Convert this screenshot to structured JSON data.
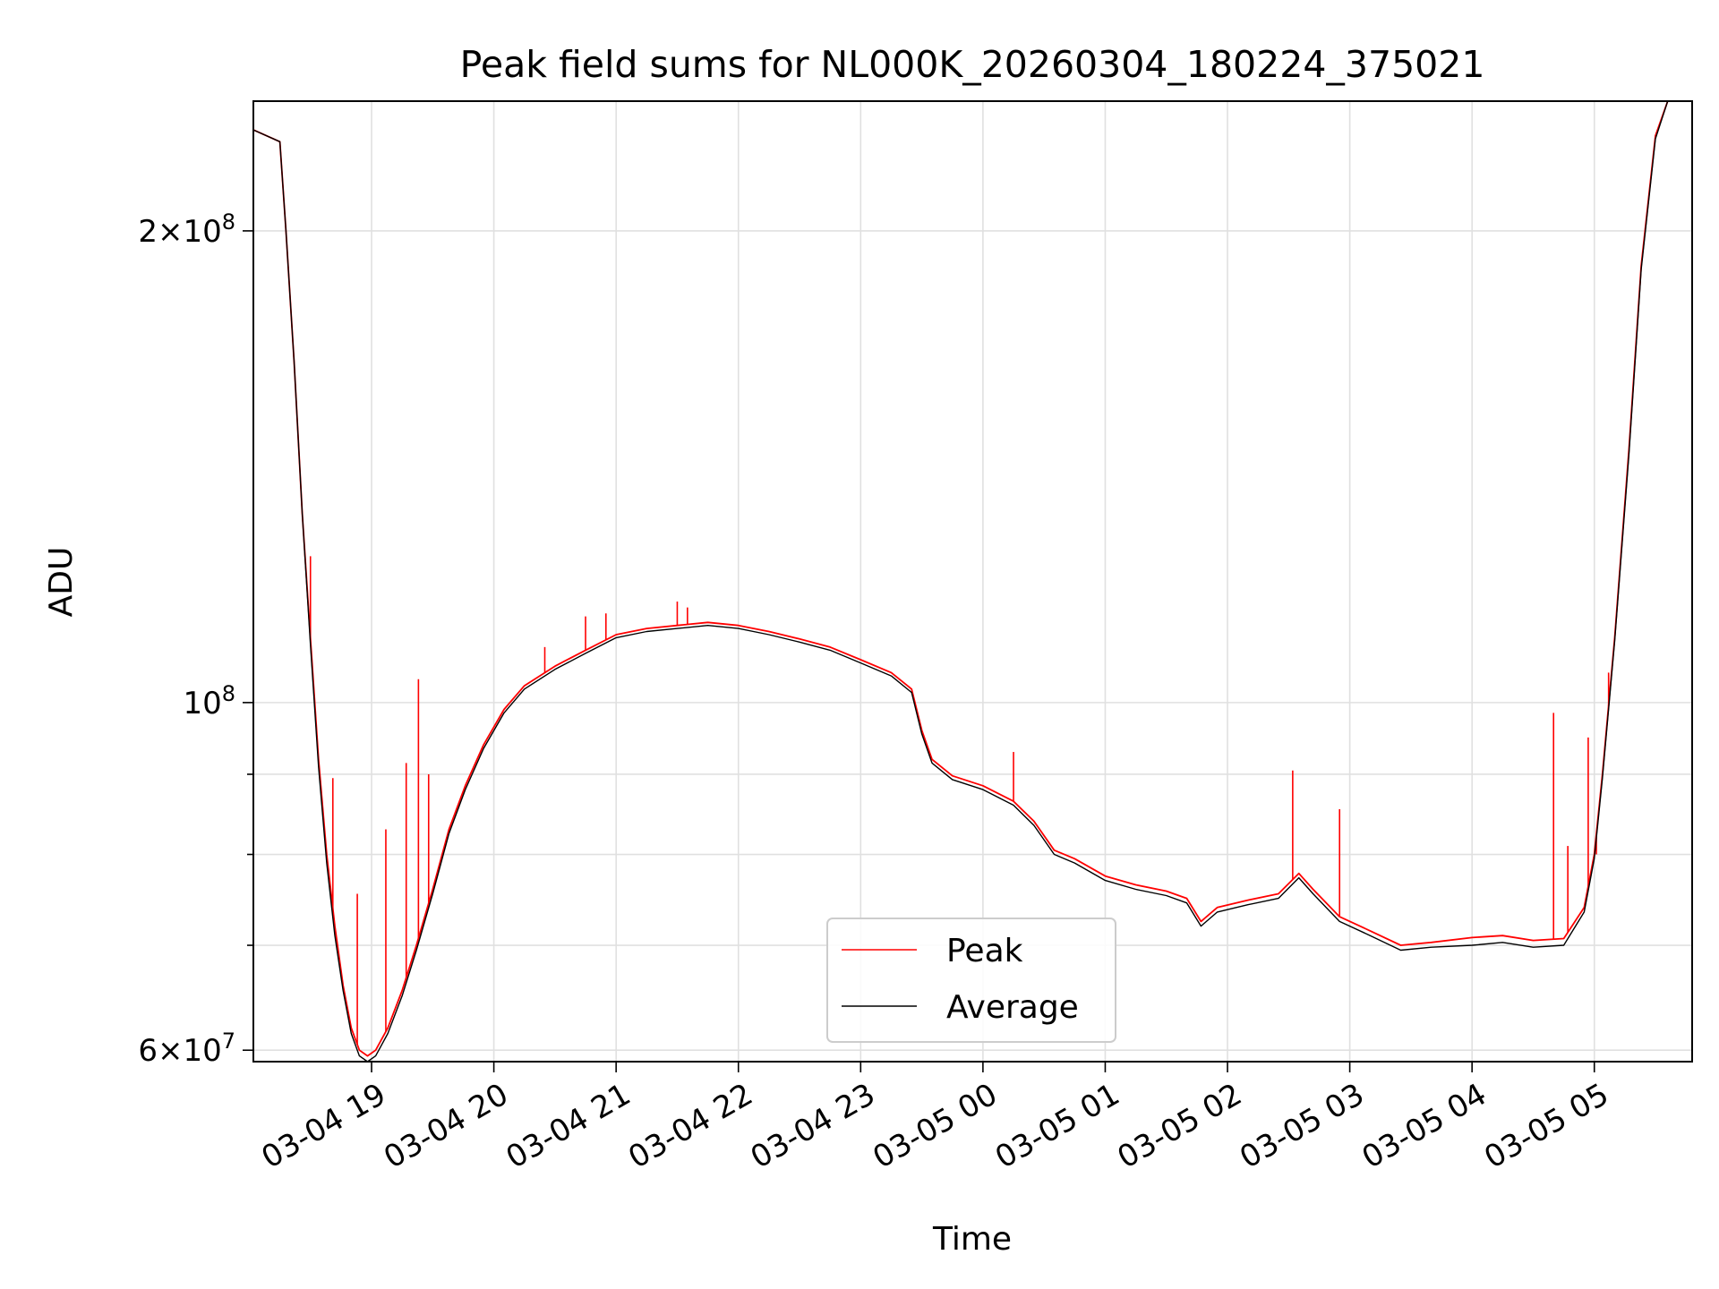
{
  "chart_data": {
    "type": "line",
    "title": "Peak field sums for NL000K_20260304_180224_375021",
    "xlabel": "Time",
    "ylabel": "ADU",
    "yscale": "log",
    "xlim": [
      "2026-03-04T18:02",
      "2026-03-05T05:48"
    ],
    "ylim": [
      59000000,
      242000000
    ],
    "grid": true,
    "legend_location": "lower center",
    "x_ticks": [
      "03-04 19",
      "03-04 20",
      "03-04 21",
      "03-04 22",
      "03-04 23",
      "03-05 00",
      "03-05 01",
      "03-05 02",
      "03-05 03",
      "03-05 04",
      "03-05 05"
    ],
    "y_ticks": [
      {
        "value": 60000000,
        "base": "6",
        "mult": "×10",
        "exp": "7"
      },
      {
        "value": 100000000,
        "base": "",
        "mult": "10",
        "exp": "8"
      },
      {
        "value": 200000000,
        "base": "2",
        "mult": "×10",
        "exp": "8"
      }
    ],
    "y_minor_ticks": [
      70000000,
      80000000,
      90000000
    ],
    "series": [
      {
        "name": "Peak",
        "color": "#ff0000",
        "points": [
          [
            "2026-03-04T18:02",
            232000000
          ],
          [
            "2026-03-04T18:15",
            228000000
          ],
          [
            "2026-03-04T18:18",
            200000000
          ],
          [
            "2026-03-04T18:22",
            165000000
          ],
          [
            "2026-03-04T18:26",
            132000000
          ],
          [
            "2026-03-04T18:30",
            110000000
          ],
          [
            "2026-03-04T18:34",
            92000000
          ],
          [
            "2026-03-04T18:38",
            80000000
          ],
          [
            "2026-03-04T18:42",
            72000000
          ],
          [
            "2026-03-04T18:46",
            66000000
          ],
          [
            "2026-03-04T18:50",
            62000000
          ],
          [
            "2026-03-04T18:54",
            60000000
          ],
          [
            "2026-03-04T18:58",
            59500000
          ],
          [
            "2026-03-04T19:02",
            60000000
          ],
          [
            "2026-03-04T19:08",
            62000000
          ],
          [
            "2026-03-04T19:15",
            65500000
          ],
          [
            "2026-03-04T19:22",
            70000000
          ],
          [
            "2026-03-04T19:30",
            76000000
          ],
          [
            "2026-03-04T19:38",
            83000000
          ],
          [
            "2026-03-04T19:46",
            88500000
          ],
          [
            "2026-03-04T19:55",
            94000000
          ],
          [
            "2026-03-04T20:05",
            99000000
          ],
          [
            "2026-03-04T20:15",
            102500000
          ],
          [
            "2026-03-04T20:30",
            105500000
          ],
          [
            "2026-03-04T20:45",
            108000000
          ],
          [
            "2026-03-04T21:00",
            110500000
          ],
          [
            "2026-03-04T21:15",
            111500000
          ],
          [
            "2026-03-04T21:30",
            112000000
          ],
          [
            "2026-03-04T21:45",
            112500000
          ],
          [
            "2026-03-04T22:00",
            112000000
          ],
          [
            "2026-03-04T22:15",
            111000000
          ],
          [
            "2026-03-04T22:30",
            109800000
          ],
          [
            "2026-03-04T22:45",
            108500000
          ],
          [
            "2026-03-04T23:00",
            106500000
          ],
          [
            "2026-03-04T23:15",
            104500000
          ],
          [
            "2026-03-04T23:25",
            102000000
          ],
          [
            "2026-03-04T23:30",
            96000000
          ],
          [
            "2026-03-04T23:35",
            92000000
          ],
          [
            "2026-03-04T23:45",
            89800000
          ],
          [
            "2026-03-05T00:00",
            88500000
          ],
          [
            "2026-03-05T00:15",
            86500000
          ],
          [
            "2026-03-05T00:25",
            84000000
          ],
          [
            "2026-03-05T00:35",
            80500000
          ],
          [
            "2026-03-05T00:45",
            79500000
          ],
          [
            "2026-03-05T01:00",
            77500000
          ],
          [
            "2026-03-05T01:15",
            76500000
          ],
          [
            "2026-03-05T01:30",
            75800000
          ],
          [
            "2026-03-05T01:40",
            75000000
          ],
          [
            "2026-03-05T01:47",
            72500000
          ],
          [
            "2026-03-05T01:55",
            74000000
          ],
          [
            "2026-03-05T02:10",
            74800000
          ],
          [
            "2026-03-05T02:25",
            75500000
          ],
          [
            "2026-03-05T02:35",
            77800000
          ],
          [
            "2026-03-05T02:42",
            76000000
          ],
          [
            "2026-03-05T02:55",
            73000000
          ],
          [
            "2026-03-05T03:10",
            71500000
          ],
          [
            "2026-03-05T03:25",
            70000000
          ],
          [
            "2026-03-05T03:40",
            70300000
          ],
          [
            "2026-03-05T04:00",
            70800000
          ],
          [
            "2026-03-05T04:15",
            71000000
          ],
          [
            "2026-03-05T04:30",
            70500000
          ],
          [
            "2026-03-05T04:45",
            70700000
          ],
          [
            "2026-03-05T04:55",
            74000000
          ],
          [
            "2026-03-05T05:00",
            80000000
          ],
          [
            "2026-03-05T05:04",
            90000000
          ],
          [
            "2026-03-05T05:10",
            110000000
          ],
          [
            "2026-03-05T05:17",
            145000000
          ],
          [
            "2026-03-05T05:23",
            190000000
          ],
          [
            "2026-03-05T05:30",
            230000000
          ],
          [
            "2026-03-05T05:36",
            242000000
          ]
        ],
        "spikes": [
          [
            "2026-03-04T18:30",
            124000000
          ],
          [
            "2026-03-04T18:41",
            89500000
          ],
          [
            "2026-03-04T18:53",
            75500000
          ],
          [
            "2026-03-04T19:07",
            83000000
          ],
          [
            "2026-03-04T19:17",
            91500000
          ],
          [
            "2026-03-04T19:23",
            103500000
          ],
          [
            "2026-03-04T19:28",
            90000000
          ],
          [
            "2026-03-04T20:25",
            108500000
          ],
          [
            "2026-03-04T20:45",
            113500000
          ],
          [
            "2026-03-04T20:55",
            114000000
          ],
          [
            "2026-03-04T21:30",
            116000000
          ],
          [
            "2026-03-04T21:35",
            115000000
          ],
          [
            "2026-03-05T00:15",
            93000000
          ],
          [
            "2026-03-05T02:32",
            90500000
          ],
          [
            "2026-03-05T02:55",
            85500000
          ],
          [
            "2026-03-05T04:40",
            98500000
          ],
          [
            "2026-03-05T04:47",
            81000000
          ],
          [
            "2026-03-05T04:57",
            95000000
          ],
          [
            "2026-03-05T05:01",
            80000000
          ],
          [
            "2026-03-05T05:07",
            104500000
          ]
        ]
      },
      {
        "name": "Average",
        "color": "#000000",
        "points": [
          [
            "2026-03-04T18:02",
            232000000
          ],
          [
            "2026-03-04T18:15",
            228000000
          ],
          [
            "2026-03-04T18:18",
            200000000
          ],
          [
            "2026-03-04T18:22",
            165000000
          ],
          [
            "2026-03-04T18:26",
            132000000
          ],
          [
            "2026-03-04T18:30",
            109000000
          ],
          [
            "2026-03-04T18:34",
            91000000
          ],
          [
            "2026-03-04T18:38",
            79000000
          ],
          [
            "2026-03-04T18:42",
            71000000
          ],
          [
            "2026-03-04T18:46",
            65500000
          ],
          [
            "2026-03-04T18:50",
            61500000
          ],
          [
            "2026-03-04T18:54",
            59500000
          ],
          [
            "2026-03-04T18:58",
            59000000
          ],
          [
            "2026-03-04T19:02",
            59500000
          ],
          [
            "2026-03-04T19:08",
            61500000
          ],
          [
            "2026-03-04T19:15",
            65000000
          ],
          [
            "2026-03-04T19:22",
            69500000
          ],
          [
            "2026-03-04T19:30",
            75500000
          ],
          [
            "2026-03-04T19:38",
            82500000
          ],
          [
            "2026-03-04T19:46",
            88000000
          ],
          [
            "2026-03-04T19:55",
            93500000
          ],
          [
            "2026-03-04T20:05",
            98500000
          ],
          [
            "2026-03-04T20:15",
            102000000
          ],
          [
            "2026-03-04T20:30",
            105000000
          ],
          [
            "2026-03-04T20:45",
            107500000
          ],
          [
            "2026-03-04T21:00",
            110000000
          ],
          [
            "2026-03-04T21:15",
            111000000
          ],
          [
            "2026-03-04T21:30",
            111500000
          ],
          [
            "2026-03-04T21:45",
            112000000
          ],
          [
            "2026-03-04T22:00",
            111500000
          ],
          [
            "2026-03-04T22:15",
            110500000
          ],
          [
            "2026-03-04T22:30",
            109300000
          ],
          [
            "2026-03-04T22:45",
            108000000
          ],
          [
            "2026-03-04T23:00",
            106000000
          ],
          [
            "2026-03-04T23:15",
            104000000
          ],
          [
            "2026-03-04T23:25",
            101500000
          ],
          [
            "2026-03-04T23:30",
            95500000
          ],
          [
            "2026-03-04T23:35",
            91500000
          ],
          [
            "2026-03-04T23:45",
            89300000
          ],
          [
            "2026-03-05T00:00",
            88000000
          ],
          [
            "2026-03-05T00:15",
            86000000
          ],
          [
            "2026-03-05T00:25",
            83500000
          ],
          [
            "2026-03-05T00:35",
            80000000
          ],
          [
            "2026-03-05T00:45",
            79000000
          ],
          [
            "2026-03-05T01:00",
            77000000
          ],
          [
            "2026-03-05T01:15",
            76000000
          ],
          [
            "2026-03-05T01:30",
            75300000
          ],
          [
            "2026-03-05T01:40",
            74500000
          ],
          [
            "2026-03-05T01:47",
            72000000
          ],
          [
            "2026-03-05T01:55",
            73500000
          ],
          [
            "2026-03-05T02:10",
            74300000
          ],
          [
            "2026-03-05T02:25",
            75000000
          ],
          [
            "2026-03-05T02:35",
            77300000
          ],
          [
            "2026-03-05T02:42",
            75500000
          ],
          [
            "2026-03-05T02:55",
            72500000
          ],
          [
            "2026-03-05T03:10",
            71000000
          ],
          [
            "2026-03-05T03:25",
            69500000
          ],
          [
            "2026-03-05T03:40",
            69800000
          ],
          [
            "2026-03-05T04:00",
            70000000
          ],
          [
            "2026-03-05T04:15",
            70300000
          ],
          [
            "2026-03-05T04:30",
            69800000
          ],
          [
            "2026-03-05T04:45",
            70000000
          ],
          [
            "2026-03-05T04:55",
            73500000
          ],
          [
            "2026-03-05T05:00",
            79500000
          ],
          [
            "2026-03-05T05:04",
            89500000
          ],
          [
            "2026-03-05T05:10",
            109500000
          ],
          [
            "2026-03-05T05:17",
            144000000
          ],
          [
            "2026-03-05T05:23",
            189000000
          ],
          [
            "2026-03-05T05:30",
            229000000
          ],
          [
            "2026-03-05T05:36",
            242000000
          ]
        ]
      }
    ]
  }
}
